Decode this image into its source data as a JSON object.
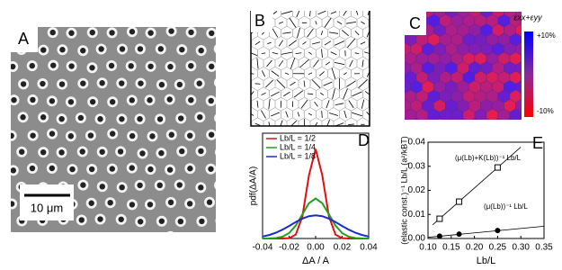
{
  "panels": {
    "a": "A",
    "b": "B",
    "c": "C",
    "d": "D",
    "e": "E"
  },
  "scale_bar": "10 μm",
  "colorbar": {
    "title": "εxx+εyy",
    "top": "+10%",
    "bottom": "-10%"
  },
  "chart_data": [
    {
      "type": "line",
      "x_label": "ΔA / A",
      "y_label": "pdf(ΔA/A)",
      "xlim": [
        -0.04,
        0.04
      ],
      "ylim": [
        0,
        100
      ],
      "xticks": [
        {
          "value": -0.04,
          "label": "-0.04"
        },
        -0.02,
        {
          "value": 0,
          "label": "0.00"
        },
        0.02,
        0.04
      ],
      "legend": "upper left",
      "x": [
        -0.04,
        -0.035,
        -0.03,
        -0.025,
        -0.02,
        -0.015,
        -0.01,
        -0.005,
        0,
        0.005,
        0.01,
        0.015,
        0.02,
        0.025,
        0.03,
        0.035,
        0.04
      ],
      "series": [
        {
          "name": "Lb/L = 1/2",
          "color": "#e01010",
          "values": [
            0,
            0,
            0,
            0,
            0.3,
            3.7,
            21,
            60,
            85,
            60,
            21,
            3.7,
            0.3,
            0,
            0,
            0,
            0
          ]
        },
        {
          "name": "Lb/L = 1/4",
          "color": "#20a020",
          "values": [
            0,
            0.1,
            0.4,
            1.7,
            5.1,
            12.3,
            23,
            33.5,
            38,
            33.5,
            23,
            12.3,
            5.1,
            1.7,
            0.4,
            0.1,
            0
          ]
        },
        {
          "name": "Lb/L = 1/8",
          "color": "#1a2ad0",
          "values": [
            1.9,
            3.3,
            5.5,
            8.4,
            11.9,
            15.6,
            18.9,
            21.2,
            22,
            21.2,
            18.9,
            15.6,
            11.9,
            8.4,
            5.5,
            3.3,
            1.9
          ]
        }
      ]
    },
    {
      "type": "scatter",
      "x_label": "Lb/L",
      "y_label": "(elastic const.)⁻¹ Lb/L (a²/kBT)",
      "xlim": [
        0.1,
        0.35
      ],
      "ylim": [
        0,
        0.04
      ],
      "xticks": [
        {
          "value": 0.1,
          "label": "0.10"
        },
        0.15,
        {
          "value": 0.2,
          "label": "0.20"
        },
        0.25,
        {
          "value": 0.3,
          "label": "0.30"
        },
        0.35
      ],
      "yticks": [
        {
          "value": 0,
          "label": "0.00"
        },
        0.01,
        0.02,
        0.03,
        0.04
      ],
      "annotations": [
        "(μ(Lb)+K(Lb))⁻¹ Lb/L",
        "(μ(Lb))⁻¹ Lb/L"
      ],
      "series": [
        {
          "marker": "square",
          "color": "#000000",
          "x": [
            0.125,
            0.167,
            0.25
          ],
          "values": [
            0.0082,
            0.0153,
            0.0295
          ]
        },
        {
          "marker": "circle",
          "color": "#000000",
          "x": [
            0.125,
            0.167,
            0.25
          ],
          "values": [
            0.001,
            0.0018,
            0.0033
          ]
        }
      ],
      "lines": [
        {
          "x": [
            0.11,
            0.3
          ],
          "values": [
            0.0057,
            0.038
          ]
        },
        {
          "x": [
            0.1,
            0.35
          ],
          "values": [
            0.0005,
            0.0051
          ]
        }
      ]
    }
  ]
}
